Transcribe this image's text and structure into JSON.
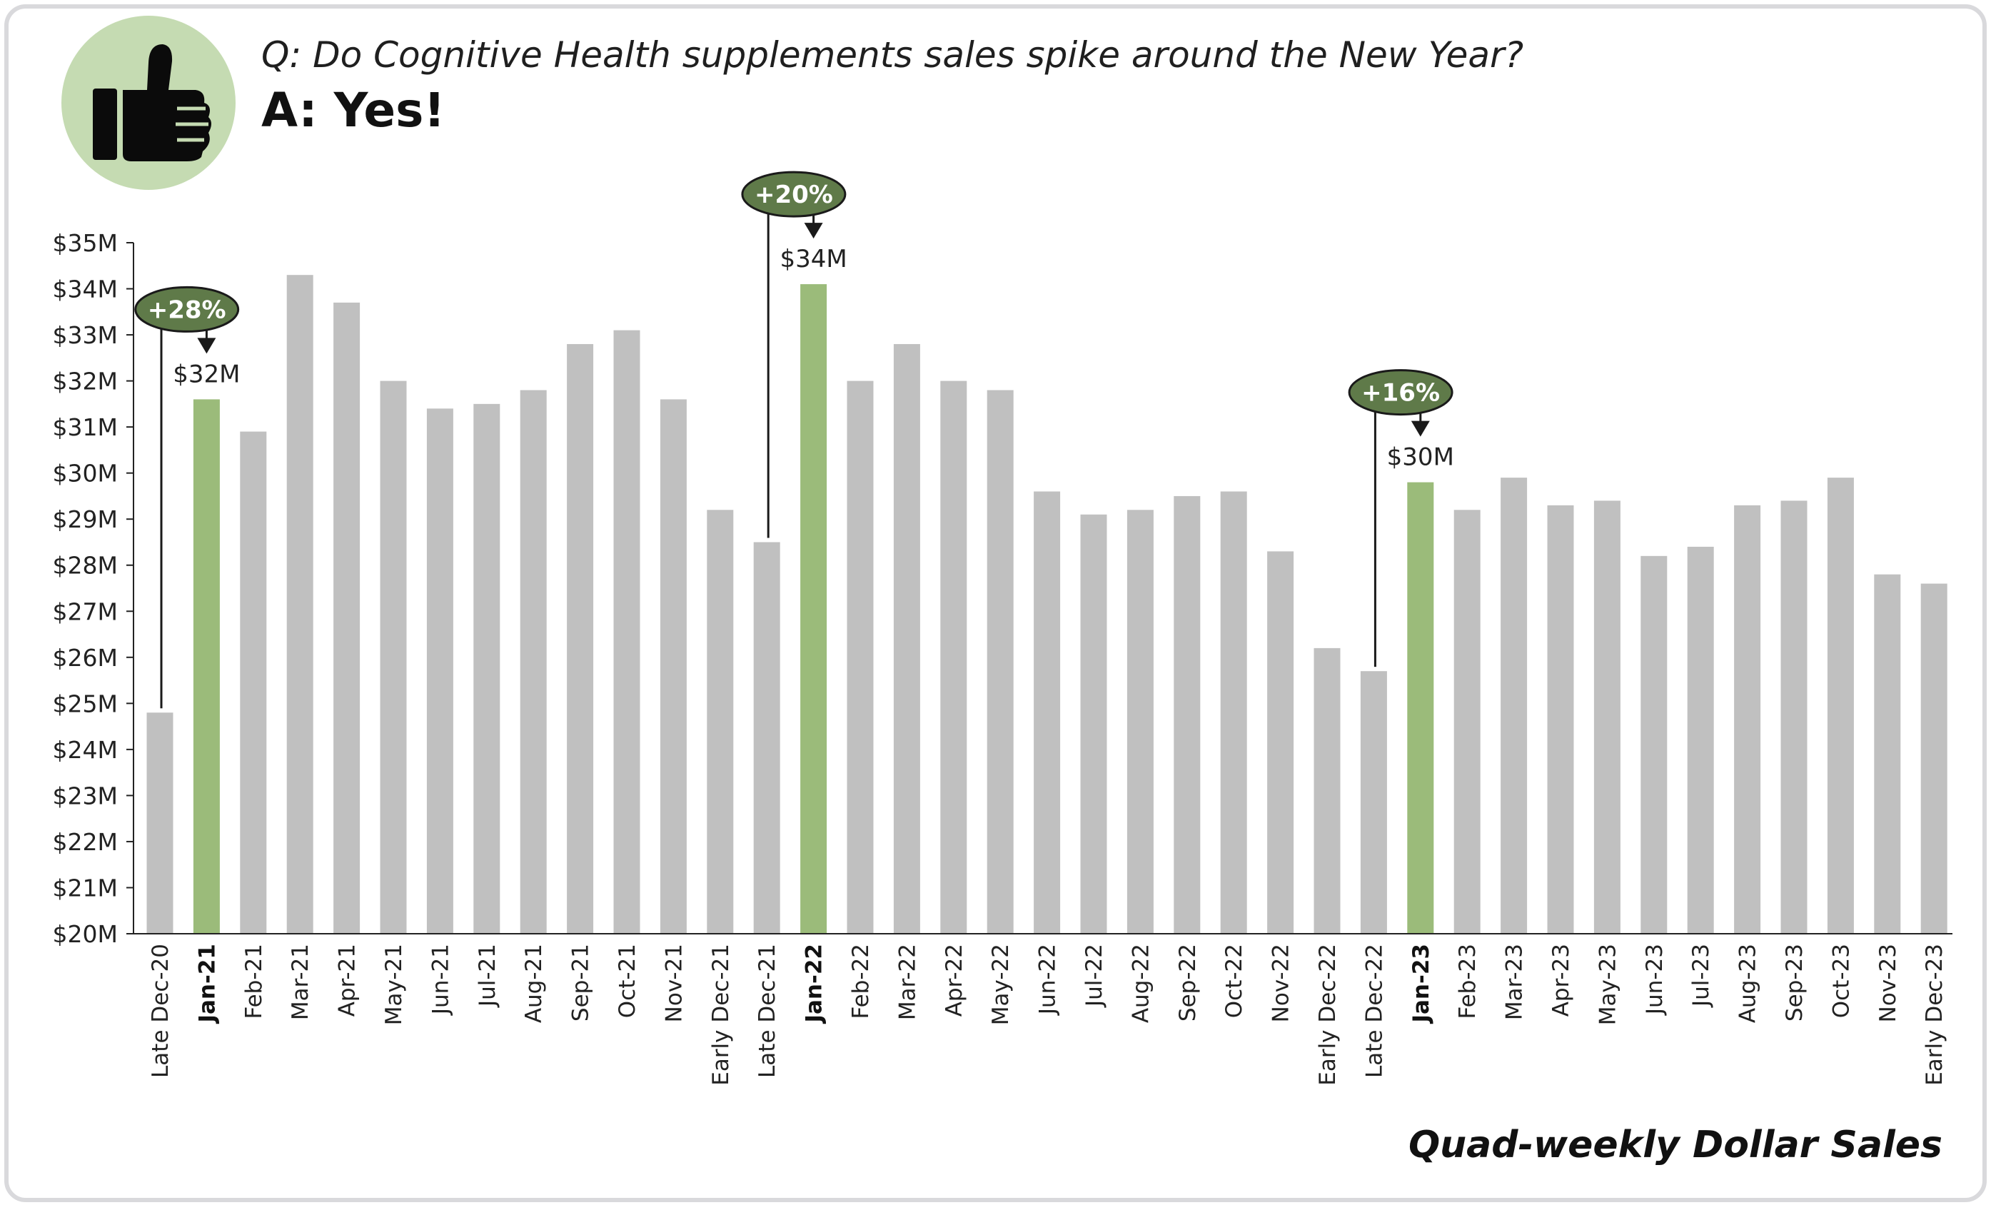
{
  "header": {
    "question": "Q: Do Cognitive Health supplements sales spike around the New Year?",
    "answer": "A: Yes!",
    "icon": "thumbs-up-icon"
  },
  "footer": {
    "note": "Quad-weekly Dollar Sales"
  },
  "colors": {
    "bar": "#c0c0c0",
    "highlight": "#9bbb7a",
    "pill": "#5f7a49",
    "badge": "#c5dbb2"
  },
  "chart_data": {
    "type": "bar",
    "ylim": [
      20,
      35
    ],
    "yticks": [
      "$20M",
      "$21M",
      "$22M",
      "$23M",
      "$24M",
      "$25M",
      "$26M",
      "$27M",
      "$28M",
      "$29M",
      "$30M",
      "$31M",
      "$32M",
      "$33M",
      "$34M",
      "$35M"
    ],
    "categories": [
      "Late Dec-20",
      "Jan-21",
      "Feb-21",
      "Mar-21",
      "Apr-21",
      "May-21",
      "Jun-21",
      "Jul-21",
      "Aug-21",
      "Sep-21",
      "Oct-21",
      "Nov-21",
      "Early Dec-21",
      "Late Dec-21",
      "Jan-22",
      "Feb-22",
      "Mar-22",
      "Apr-22",
      "May-22",
      "Jun-22",
      "Jul-22",
      "Aug-22",
      "Sep-22",
      "Oct-22",
      "Nov-22",
      "Early Dec-22",
      "Late Dec-22",
      "Jan-23",
      "Feb-23",
      "Mar-23",
      "Apr-23",
      "May-23",
      "Jun-23",
      "Jul-23",
      "Aug-23",
      "Sep-23",
      "Oct-23",
      "Nov-23",
      "Early Dec-23"
    ],
    "values": [
      24.8,
      31.6,
      30.9,
      34.3,
      33.7,
      32.0,
      31.4,
      31.5,
      31.8,
      32.8,
      33.1,
      31.6,
      29.2,
      28.5,
      34.1,
      32.0,
      32.8,
      32.0,
      31.8,
      29.6,
      29.1,
      29.2,
      29.5,
      29.6,
      28.3,
      26.2,
      25.7,
      29.8,
      29.2,
      29.9,
      29.3,
      29.4,
      28.2,
      28.4,
      29.3,
      29.4,
      29.9,
      27.8,
      27.6
    ],
    "highlight_indices": [
      1,
      14,
      27
    ],
    "annotations": [
      {
        "from": 0,
        "to": 1,
        "pct": "+28%",
        "label": "$32M"
      },
      {
        "from": 13,
        "to": 14,
        "pct": "+20%",
        "label": "$34M"
      },
      {
        "from": 26,
        "to": 27,
        "pct": "+16%",
        "label": "$30M"
      }
    ]
  }
}
